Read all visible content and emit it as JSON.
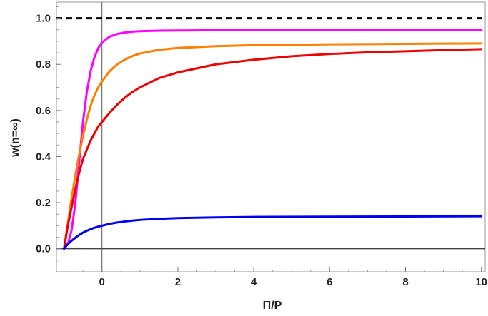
{
  "chart_data": {
    "type": "line",
    "title": "",
    "xlabel": "Π/P",
    "ylabel": "w(n=∞)",
    "xlim": [
      -1.2,
      10.1
    ],
    "ylim": [
      -0.1,
      1.07
    ],
    "xticks": [
      0,
      2,
      4,
      6,
      8,
      10
    ],
    "xtick_labels": [
      "0",
      "2",
      "4",
      "6",
      "8",
      "10"
    ],
    "yticks": [
      0.0,
      0.2,
      0.4,
      0.6,
      0.8,
      1.0
    ],
    "ytick_labels": [
      "0.0",
      "0.2",
      "0.4",
      "0.6",
      "0.8",
      "1.0"
    ],
    "grid": false,
    "reference_line": {
      "y": 1.0,
      "style": "dashed",
      "color": "#000000"
    },
    "series": [
      {
        "color": "#ff00ff",
        "x": [
          -1.0,
          -0.9,
          -0.8,
          -0.7,
          -0.6,
          -0.5,
          -0.4,
          -0.3,
          -0.2,
          -0.1,
          0.0,
          0.2,
          0.4,
          0.6,
          0.8,
          1.0,
          1.5,
          2.0,
          3.0,
          4.0,
          6.0,
          8.0,
          10.0
        ],
        "y": [
          0.0,
          0.02,
          0.08,
          0.2,
          0.38,
          0.55,
          0.68,
          0.77,
          0.83,
          0.87,
          0.895,
          0.92,
          0.932,
          0.938,
          0.942,
          0.944,
          0.946,
          0.947,
          0.948,
          0.948,
          0.948,
          0.948,
          0.948
        ]
      },
      {
        "color": "#ff8000",
        "x": [
          -1.0,
          -0.9,
          -0.8,
          -0.7,
          -0.6,
          -0.5,
          -0.4,
          -0.3,
          -0.2,
          -0.1,
          0.0,
          0.2,
          0.4,
          0.6,
          0.8,
          1.0,
          1.5,
          2.0,
          3.0,
          4.0,
          6.0,
          8.0,
          10.0
        ],
        "y": [
          0.0,
          0.11,
          0.22,
          0.32,
          0.41,
          0.49,
          0.56,
          0.62,
          0.665,
          0.7,
          0.725,
          0.77,
          0.8,
          0.82,
          0.836,
          0.847,
          0.863,
          0.871,
          0.879,
          0.883,
          0.887,
          0.889,
          0.891
        ]
      },
      {
        "color": "#ee0000",
        "x": [
          -1.0,
          -0.9,
          -0.8,
          -0.7,
          -0.6,
          -0.5,
          -0.4,
          -0.3,
          -0.2,
          -0.1,
          0.0,
          0.2,
          0.4,
          0.6,
          0.8,
          1.0,
          1.5,
          2.0,
          3.0,
          4.0,
          5.0,
          6.0,
          7.0,
          8.0,
          9.0,
          10.0
        ],
        "y": [
          0.0,
          0.1,
          0.18,
          0.26,
          0.33,
          0.39,
          0.43,
          0.47,
          0.5,
          0.53,
          0.55,
          0.59,
          0.625,
          0.655,
          0.68,
          0.7,
          0.74,
          0.765,
          0.8,
          0.82,
          0.835,
          0.845,
          0.852,
          0.857,
          0.862,
          0.866
        ]
      },
      {
        "color": "#0000ee",
        "x": [
          -1.0,
          -0.9,
          -0.8,
          -0.7,
          -0.6,
          -0.5,
          -0.4,
          -0.3,
          -0.2,
          -0.1,
          0.0,
          0.2,
          0.4,
          0.6,
          0.8,
          1.0,
          1.5,
          2.0,
          3.0,
          4.0,
          6.0,
          8.0,
          10.0
        ],
        "y": [
          0.0,
          0.02,
          0.035,
          0.048,
          0.06,
          0.07,
          0.078,
          0.085,
          0.091,
          0.096,
          0.1,
          0.108,
          0.114,
          0.118,
          0.122,
          0.125,
          0.13,
          0.133,
          0.136,
          0.138,
          0.139,
          0.14,
          0.141
        ]
      }
    ]
  }
}
